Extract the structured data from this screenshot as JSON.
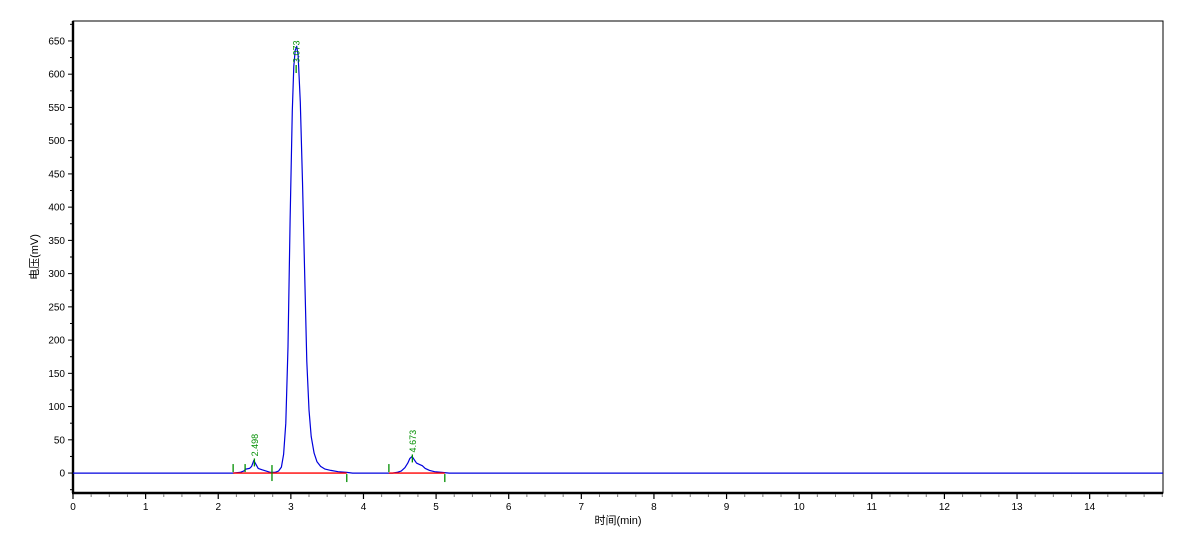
{
  "chart_data": {
    "type": "line",
    "title": "",
    "xlabel": "时间(min)",
    "ylabel": "电压(mV)",
    "xlim": [
      0,
      15.01
    ],
    "ylim": [
      -30,
      680
    ],
    "grid": false,
    "legend": "none",
    "x_major_ticks": [
      0,
      1,
      2,
      3,
      4,
      5,
      6,
      7,
      8,
      9,
      10,
      11,
      12,
      13,
      14
    ],
    "x_minor_step": 0.25,
    "y_major_ticks": [
      0,
      50,
      100,
      150,
      200,
      250,
      300,
      350,
      400,
      450,
      500,
      550,
      600,
      650
    ],
    "y_minor_step": 25,
    "colors": {
      "trace": "#0000dd",
      "integration_baseline": "#ff0000",
      "peak_marker": "#008f00",
      "axis": "#000000",
      "minor_tick": "#777777",
      "tick_label": "#000000",
      "background": "#ffffff"
    },
    "series": [
      {
        "name": "detector-signal",
        "points": [
          [
            0,
            0
          ],
          [
            2.2,
            0
          ],
          [
            2.3,
            1
          ],
          [
            2.35,
            3
          ],
          [
            2.38,
            6
          ],
          [
            2.43,
            7
          ],
          [
            2.46,
            10
          ],
          [
            2.49,
            19
          ],
          [
            2.52,
            13
          ],
          [
            2.55,
            7
          ],
          [
            2.6,
            5
          ],
          [
            2.66,
            3
          ],
          [
            2.72,
            1
          ],
          [
            2.78,
            1
          ],
          [
            2.83,
            3
          ],
          [
            2.87,
            9
          ],
          [
            2.9,
            28
          ],
          [
            2.93,
            75
          ],
          [
            2.96,
            190
          ],
          [
            2.99,
            380
          ],
          [
            3.02,
            545
          ],
          [
            3.04,
            612
          ],
          [
            3.06,
            636
          ],
          [
            3.08,
            642
          ],
          [
            3.1,
            629
          ],
          [
            3.13,
            558
          ],
          [
            3.16,
            438
          ],
          [
            3.19,
            298
          ],
          [
            3.22,
            168
          ],
          [
            3.25,
            95
          ],
          [
            3.28,
            55
          ],
          [
            3.32,
            30
          ],
          [
            3.36,
            17
          ],
          [
            3.41,
            10
          ],
          [
            3.47,
            6
          ],
          [
            3.55,
            4
          ],
          [
            3.65,
            2
          ],
          [
            3.77,
            1
          ],
          [
            3.85,
            0
          ],
          [
            4.4,
            0
          ],
          [
            4.46,
            1
          ],
          [
            4.52,
            3
          ],
          [
            4.57,
            8
          ],
          [
            4.61,
            15
          ],
          [
            4.64,
            22
          ],
          [
            4.67,
            25
          ],
          [
            4.7,
            20
          ],
          [
            4.73,
            15
          ],
          [
            4.77,
            13
          ],
          [
            4.81,
            11
          ],
          [
            4.85,
            7
          ],
          [
            4.91,
            4
          ],
          [
            4.98,
            2
          ],
          [
            5.08,
            1
          ],
          [
            5.18,
            0
          ],
          [
            15.01,
            0
          ]
        ]
      }
    ],
    "peaks": [
      {
        "label": "2.498",
        "time": 2.498,
        "apex_mv": 19
      },
      {
        "label": "3.073",
        "time": 3.073,
        "apex_mv": 642
      },
      {
        "label": "4.673",
        "time": 4.673,
        "apex_mv": 25
      }
    ],
    "integration_baseline_segments": [
      {
        "from": 2.205,
        "to": 3.77,
        "level_mv": 0
      },
      {
        "from": 4.35,
        "to": 5.12,
        "level_mv": 0
      }
    ],
    "integration_ticks": [
      {
        "time": 2.205,
        "dir": "up"
      },
      {
        "time": 2.37,
        "dir": "up"
      },
      {
        "time": 2.74,
        "dir": "both"
      },
      {
        "time": 3.77,
        "dir": "down"
      },
      {
        "time": 4.35,
        "dir": "up"
      },
      {
        "time": 5.12,
        "dir": "down"
      }
    ]
  }
}
